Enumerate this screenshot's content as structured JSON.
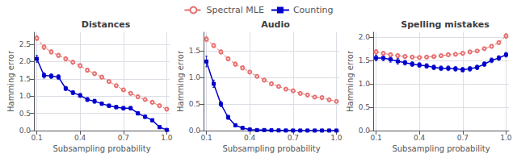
{
  "chart_data": [
    {
      "type": "line",
      "title": "Distances",
      "xlabel": "Subsampling probability",
      "ylabel": "Hamming error",
      "xlim": [
        0.08,
        1.02
      ],
      "ylim": [
        0.0,
        2.85
      ],
      "xticks": [
        0.1,
        0.4,
        0.7,
        {
          "value": 1.0,
          "label": "1.0"
        }
      ],
      "yticks": [
        {
          "value": 0.0,
          "label": "0.0"
        },
        0.5,
        {
          "value": 1.0,
          "label": "1.0"
        },
        1.5,
        {
          "value": 2.0,
          "label": "2.0"
        },
        2.5
      ],
      "grid": true,
      "series": [
        {
          "name": "Spectral MLE",
          "color": "#e87070",
          "line_style": "dashed",
          "marker": "circle",
          "x": [
            0.1,
            0.15,
            0.2,
            0.25,
            0.3,
            0.35,
            0.4,
            0.45,
            0.5,
            0.55,
            0.6,
            0.65,
            0.7,
            0.75,
            0.8,
            0.85,
            0.9,
            0.95,
            1.0
          ],
          "values": [
            2.68,
            2.42,
            2.28,
            2.18,
            2.08,
            1.98,
            1.88,
            1.75,
            1.65,
            1.55,
            1.42,
            1.3,
            1.18,
            1.08,
            0.98,
            0.9,
            0.82,
            0.72,
            0.62
          ],
          "errors": [
            0.07,
            0.07,
            0.06,
            0.06,
            0.06,
            0.06,
            0.06,
            0.06,
            0.05,
            0.05,
            0.05,
            0.05,
            0.05,
            0.05,
            0.05,
            0.05,
            0.05,
            0.05,
            0.05
          ]
        },
        {
          "name": "Counting",
          "color": "#0000cc",
          "line_style": "solid",
          "marker": "square",
          "x": [
            0.1,
            0.15,
            0.2,
            0.25,
            0.3,
            0.35,
            0.4,
            0.45,
            0.5,
            0.55,
            0.6,
            0.65,
            0.7,
            0.75,
            0.8,
            0.85,
            0.9,
            0.95,
            1.0
          ],
          "values": [
            2.08,
            1.6,
            1.58,
            1.55,
            1.22,
            1.1,
            1.02,
            0.9,
            0.85,
            0.78,
            0.72,
            0.68,
            0.65,
            0.65,
            0.5,
            0.4,
            0.3,
            0.1,
            0.02
          ],
          "errors": [
            0.1,
            0.08,
            0.07,
            0.07,
            0.06,
            0.06,
            0.06,
            0.06,
            0.06,
            0.05,
            0.05,
            0.05,
            0.05,
            0.05,
            0.05,
            0.05,
            0.04,
            0.03,
            0.02
          ]
        }
      ]
    },
    {
      "type": "line",
      "title": "Audio",
      "xlabel": "Subsampling probability",
      "ylabel": "Hamming error",
      "xlim": [
        0.08,
        1.02
      ],
      "ylim": [
        0.0,
        1.85
      ],
      "xticks": [
        0.1,
        0.4,
        0.7,
        {
          "value": 1.0,
          "label": "1.0"
        }
      ],
      "yticks": [
        {
          "value": 0.0,
          "label": "0.0"
        },
        0.5,
        {
          "value": 1.0,
          "label": "1.0"
        },
        1.5
      ],
      "grid": true,
      "series": [
        {
          "name": "Spectral MLE",
          "color": "#e87070",
          "line_style": "dashed",
          "marker": "circle",
          "x": [
            0.1,
            0.15,
            0.2,
            0.25,
            0.3,
            0.35,
            0.4,
            0.45,
            0.5,
            0.55,
            0.6,
            0.65,
            0.7,
            0.75,
            0.8,
            0.85,
            0.9,
            0.95,
            1.0
          ],
          "values": [
            1.72,
            1.6,
            1.48,
            1.35,
            1.25,
            1.18,
            1.1,
            1.02,
            0.95,
            0.88,
            0.83,
            0.78,
            0.75,
            0.7,
            0.67,
            0.63,
            0.62,
            0.58,
            0.55
          ],
          "errors": [
            0.05,
            0.04,
            0.04,
            0.04,
            0.04,
            0.04,
            0.03,
            0.03,
            0.03,
            0.03,
            0.03,
            0.03,
            0.03,
            0.03,
            0.03,
            0.03,
            0.03,
            0.03,
            0.03
          ]
        },
        {
          "name": "Counting",
          "color": "#0000cc",
          "line_style": "solid",
          "marker": "square",
          "x": [
            0.1,
            0.15,
            0.2,
            0.25,
            0.3,
            0.35,
            0.4,
            0.45,
            0.5,
            0.55,
            0.6,
            0.65,
            0.7,
            0.75,
            0.8,
            0.85,
            0.9,
            0.95,
            1.0
          ],
          "values": [
            1.3,
            0.88,
            0.5,
            0.25,
            0.1,
            0.05,
            0.02,
            0.01,
            0.01,
            0.005,
            0.003,
            0.002,
            0.001,
            0.001,
            0.001,
            0.001,
            0.001,
            0.001,
            0.001
          ],
          "errors": [
            0.1,
            0.07,
            0.05,
            0.04,
            0.03,
            0.02,
            0.01,
            0.008,
            0.005,
            0.003,
            0.002,
            0.001,
            0.001,
            0.001,
            0.001,
            0.001,
            0.001,
            0.001,
            0.001
          ]
        }
      ]
    },
    {
      "type": "line",
      "title": "Spelling mistakes",
      "xlabel": "Subsampling probability",
      "ylabel": "Hamming error",
      "xlim": [
        0.08,
        1.02
      ],
      "ylim": [
        0.0,
        2.1
      ],
      "xticks": [
        0.1,
        0.4,
        0.7,
        {
          "value": 1.0,
          "label": "1.0"
        }
      ],
      "yticks": [
        {
          "value": 0.0,
          "label": "0.0"
        },
        0.5,
        {
          "value": 1.0,
          "label": "1.0"
        },
        1.5,
        {
          "value": 2.0,
          "label": "2.0"
        }
      ],
      "grid": true,
      "series": [
        {
          "name": "Spectral MLE",
          "color": "#e87070",
          "line_style": "dashed",
          "marker": "circle",
          "x": [
            0.1,
            0.15,
            0.2,
            0.25,
            0.3,
            0.35,
            0.4,
            0.45,
            0.5,
            0.55,
            0.6,
            0.65,
            0.7,
            0.75,
            0.8,
            0.85,
            0.9,
            0.95,
            1.0
          ],
          "values": [
            1.68,
            1.65,
            1.62,
            1.6,
            1.58,
            1.57,
            1.56,
            1.57,
            1.58,
            1.6,
            1.62,
            1.63,
            1.65,
            1.68,
            1.7,
            1.75,
            1.8,
            1.88,
            2.02
          ],
          "errors": [
            0.05,
            0.04,
            0.04,
            0.04,
            0.04,
            0.03,
            0.03,
            0.03,
            0.03,
            0.03,
            0.03,
            0.03,
            0.03,
            0.03,
            0.03,
            0.03,
            0.04,
            0.04,
            0.05
          ]
        },
        {
          "name": "Counting",
          "color": "#0000cc",
          "line_style": "solid",
          "marker": "square",
          "x": [
            0.1,
            0.15,
            0.2,
            0.25,
            0.3,
            0.35,
            0.4,
            0.45,
            0.5,
            0.55,
            0.6,
            0.65,
            0.7,
            0.75,
            0.8,
            0.85,
            0.9,
            0.95,
            1.0
          ],
          "values": [
            1.55,
            1.55,
            1.52,
            1.48,
            1.45,
            1.42,
            1.4,
            1.38,
            1.35,
            1.33,
            1.33,
            1.32,
            1.3,
            1.32,
            1.35,
            1.42,
            1.5,
            1.55,
            1.62
          ],
          "errors": [
            0.06,
            0.06,
            0.06,
            0.06,
            0.05,
            0.05,
            0.05,
            0.05,
            0.05,
            0.05,
            0.05,
            0.05,
            0.05,
            0.05,
            0.05,
            0.05,
            0.05,
            0.05,
            0.05
          ]
        }
      ]
    }
  ]
}
